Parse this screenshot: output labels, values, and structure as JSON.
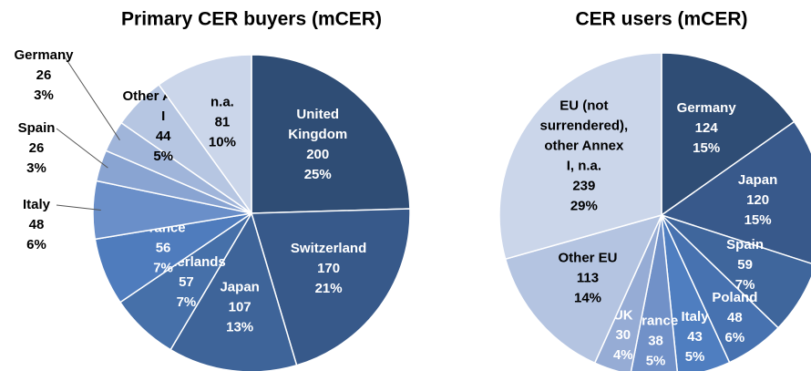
{
  "chart_data": [
    {
      "type": "pie",
      "title": "Primary CER buyers (mCER)",
      "categories": [
        "United Kingdom",
        "Switzerland",
        "Japan",
        "Netherlands",
        "France",
        "Italy",
        "Spain",
        "Germany",
        "Other Annex I",
        "n.a."
      ],
      "values": [
        200,
        170,
        107,
        57,
        56,
        48,
        26,
        26,
        44,
        81
      ],
      "shares": [
        "25%",
        "21%",
        "13%",
        "7%",
        "7%",
        "6%",
        "3%",
        "3%",
        "5%",
        "10%"
      ],
      "colors": [
        "#2f4d75",
        "#37598a",
        "#3e6499",
        "#4670a9",
        "#4f7cbd",
        "#6a8fc9",
        "#89a4d2",
        "#a0b5da",
        "#b6c6e2",
        "#cbd6ea"
      ]
    },
    {
      "type": "pie",
      "title": "CER users (mCER)",
      "categories": [
        "Germany",
        "Japan",
        "Spain",
        "Poland",
        "Italy",
        "France",
        "UK",
        "Other EU",
        "EU (not surrendered), other Annex I, n.a."
      ],
      "values": [
        124,
        120,
        59,
        48,
        43,
        38,
        30,
        113,
        239
      ],
      "shares": [
        "15%",
        "15%",
        "7%",
        "6%",
        "5%",
        "5%",
        "4%",
        "14%",
        "29%"
      ],
      "colors": [
        "#2f4d75",
        "#38598b",
        "#3f669c",
        "#4772b0",
        "#4f7ec0",
        "#7191c8",
        "#96acd5",
        "#b4c4e1",
        "#cbd6ea"
      ]
    }
  ]
}
